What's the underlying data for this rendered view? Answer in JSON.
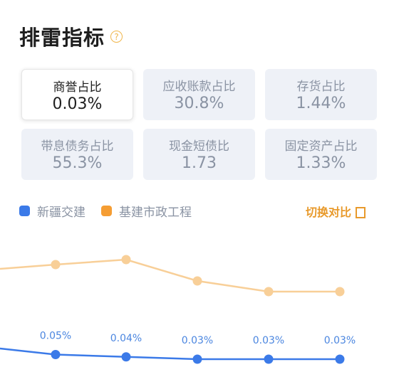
{
  "header": {
    "title": "排雷指标",
    "help_icon": "?"
  },
  "metrics": [
    {
      "label": "商誉占比",
      "value": "0.03%",
      "selected": true
    },
    {
      "label": "应收账款占比",
      "value": "30.8%"
    },
    {
      "label": "存货占比",
      "value": "1.44%"
    },
    {
      "label": "带息债务占比",
      "value": "55.3%"
    },
    {
      "label": "现金短债比",
      "value": "1.73"
    },
    {
      "label": "固定资产占比",
      "value": "1.33%"
    }
  ],
  "legend": {
    "items": [
      {
        "name": "新疆交建",
        "color": "#3b7ae8"
      },
      {
        "name": "基建市政工程",
        "color": "#f59d33"
      }
    ],
    "switch_label": "切换对比"
  },
  "chart_data": {
    "type": "line",
    "series": [
      {
        "name": "新疆交建",
        "color": "#3b7ae8",
        "labels": [
          "0.05%",
          "0.04%",
          "0.03%",
          "0.03%",
          "0.03%"
        ],
        "values": [
          0.05,
          0.04,
          0.03,
          0.03,
          0.03
        ]
      },
      {
        "name": "基建市政工程",
        "color": "#f8cf98"
      }
    ]
  }
}
